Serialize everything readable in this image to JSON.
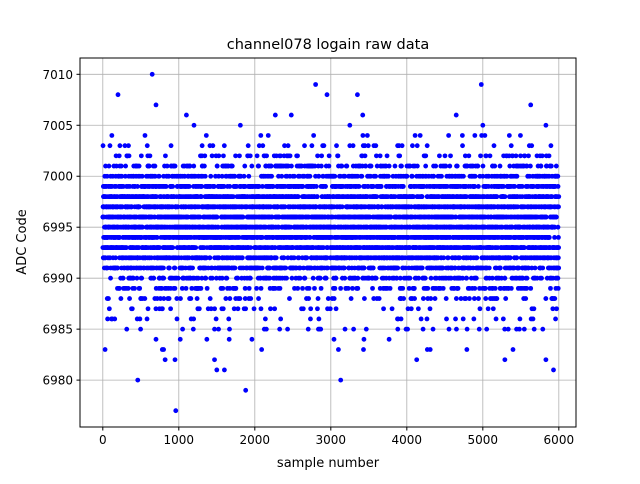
{
  "chart_data": {
    "type": "scatter",
    "title": "channel078 logain raw data",
    "xlabel": "sample number",
    "ylabel": "ADC Code",
    "xlim": [
      -300,
      6226
    ],
    "ylim": [
      6975.4,
      7011.6
    ],
    "xticks": [
      0,
      1000,
      2000,
      3000,
      4000,
      5000,
      6000
    ],
    "yticks": [
      6980,
      6985,
      6990,
      6995,
      7000,
      7005,
      7010
    ],
    "grid": true,
    "marker_color": "#0000ff",
    "n_samples": 6000,
    "value_distribution": {
      "values": [
        6983,
        6984,
        6985,
        6986,
        6987,
        6988,
        6989,
        6990,
        6991,
        6992,
        6993,
        6994,
        6995,
        6996,
        6997,
        6998,
        6999,
        7000,
        7001,
        7002,
        7003,
        7004
      ],
      "weights": [
        1,
        2,
        3,
        5,
        8,
        14,
        22,
        40,
        60,
        90,
        110,
        120,
        125,
        120,
        110,
        95,
        70,
        45,
        28,
        16,
        8,
        3
      ]
    },
    "outliers": [
      {
        "x": 650,
        "y": 7010
      },
      {
        "x": 200,
        "y": 7008
      },
      {
        "x": 700,
        "y": 7007
      },
      {
        "x": 2800,
        "y": 7009
      },
      {
        "x": 2950,
        "y": 7008
      },
      {
        "x": 3350,
        "y": 7008
      },
      {
        "x": 4980,
        "y": 7009
      },
      {
        "x": 5630,
        "y": 7007
      },
      {
        "x": 1100,
        "y": 7006
      },
      {
        "x": 2270,
        "y": 7006
      },
      {
        "x": 2480,
        "y": 7006
      },
      {
        "x": 3420,
        "y": 7006
      },
      {
        "x": 4650,
        "y": 7006
      },
      {
        "x": 1200,
        "y": 7005
      },
      {
        "x": 1810,
        "y": 7005
      },
      {
        "x": 3250,
        "y": 7005
      },
      {
        "x": 5000,
        "y": 7005
      },
      {
        "x": 5830,
        "y": 7005
      },
      {
        "x": 960,
        "y": 6977
      },
      {
        "x": 1880,
        "y": 6979
      },
      {
        "x": 460,
        "y": 6980
      },
      {
        "x": 3130,
        "y": 6980
      },
      {
        "x": 820,
        "y": 6982
      },
      {
        "x": 950,
        "y": 6982
      },
      {
        "x": 1470,
        "y": 6982
      },
      {
        "x": 4130,
        "y": 6982
      },
      {
        "x": 5290,
        "y": 6982
      },
      {
        "x": 5830,
        "y": 6982
      },
      {
        "x": 1500,
        "y": 6981
      },
      {
        "x": 1600,
        "y": 6981
      },
      {
        "x": 5930,
        "y": 6981
      },
      {
        "x": 30,
        "y": 6983
      },
      {
        "x": 800,
        "y": 6983
      },
      {
        "x": 3100,
        "y": 6983
      },
      {
        "x": 3430,
        "y": 6983
      },
      {
        "x": 4270,
        "y": 6983
      },
      {
        "x": 4790,
        "y": 6983
      }
    ]
  }
}
